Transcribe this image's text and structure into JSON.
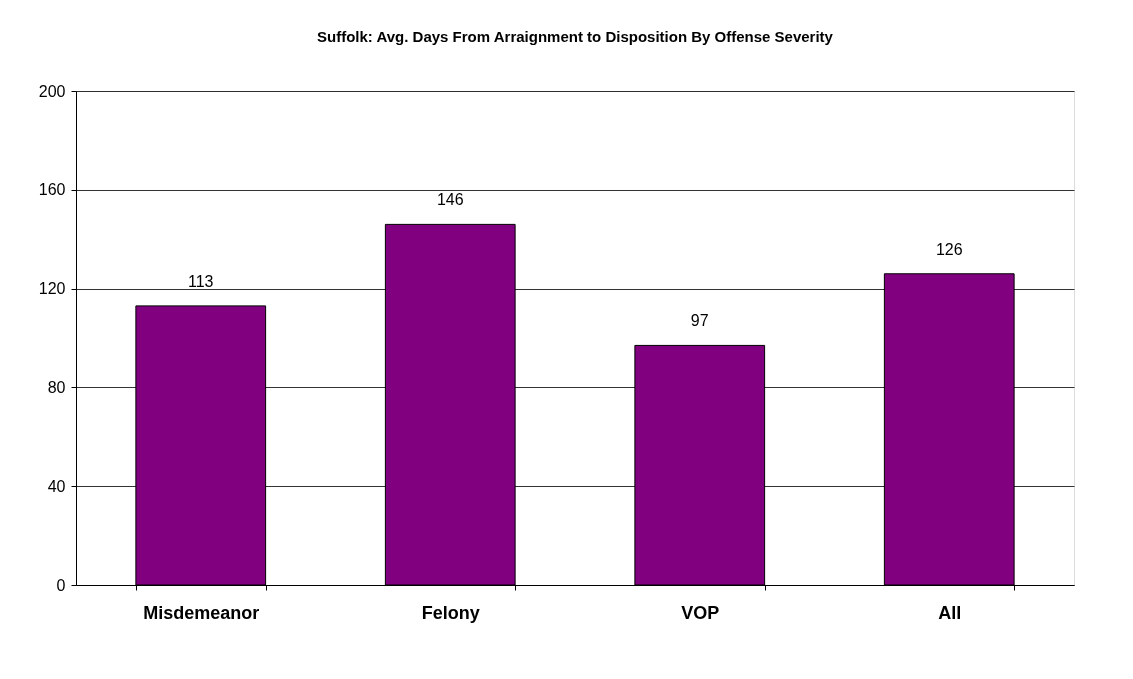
{
  "chart_data": {
    "type": "bar",
    "title": "Suffolk: Avg. Days From Arraignment to Disposition By Offense Severity",
    "categories": [
      "Misdemeanor",
      "Felony",
      "VOP",
      "All"
    ],
    "values": [
      113,
      146,
      97,
      126
    ],
    "color": "#800080",
    "ylim": [
      0,
      200
    ],
    "yticks": [
      0,
      40,
      80,
      120,
      160,
      200
    ],
    "grid": "y",
    "data_labels": true
  }
}
